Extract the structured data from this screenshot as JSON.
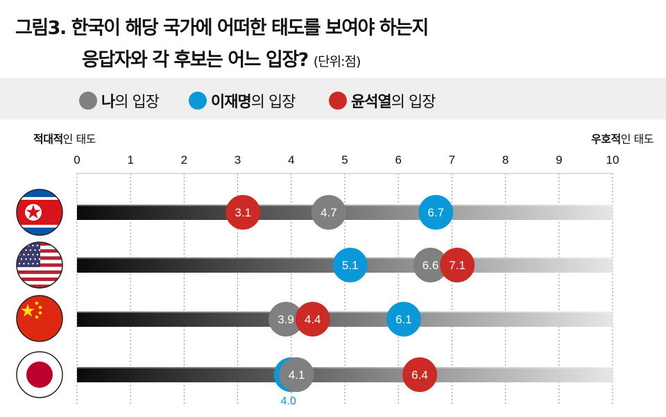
{
  "title": {
    "line1": "그림3. 한국이 해당 국가에 어떠한 태도를 보여야 하는지",
    "line2": "응답자와 각 후보는 어느 입장?",
    "unit": "(단위:점)"
  },
  "legend": [
    {
      "bold": "나",
      "rest": "의 입장",
      "color": "#808080"
    },
    {
      "bold": "이재명",
      "rest": "의 입장",
      "color": "#0a98d8"
    },
    {
      "bold": "윤석열",
      "rest": "의 입장",
      "color": "#cc2a25"
    }
  ],
  "axis_labels": {
    "left_bold": "적대적",
    "left_rest": "인 태도",
    "right_bold": "우호적",
    "right_rest": "인 태도"
  },
  "chart_data": {
    "type": "scatter",
    "title": "한국이 해당 국가에 어떠한 태도를 보여야 하는지 응답자와 각 후보는 어느 입장?",
    "xlim": [
      0,
      10
    ],
    "xticks": [
      0,
      1,
      2,
      3,
      4,
      5,
      6,
      7,
      8,
      9,
      10
    ],
    "grid": true,
    "categories": [
      "north-korea",
      "usa",
      "china",
      "japan"
    ],
    "series": [
      {
        "name": "이재명의 입장",
        "color": "#0a98d8",
        "values": [
          6.7,
          5.1,
          6.1,
          4.0
        ]
      },
      {
        "name": "나의 입장",
        "color": "#808080",
        "values": [
          4.7,
          6.6,
          3.9,
          4.1
        ]
      },
      {
        "name": "윤석열의 입장",
        "color": "#cc2a25",
        "values": [
          3.1,
          7.1,
          4.4,
          6.4
        ]
      }
    ],
    "value_labels": [
      [
        "6.7",
        "5.1",
        "6.1",
        "4.0"
      ],
      [
        "4.7",
        "6.6",
        "3.9",
        "4.1"
      ],
      [
        "3.1",
        "7.1",
        "4.4",
        "6.4"
      ]
    ]
  }
}
